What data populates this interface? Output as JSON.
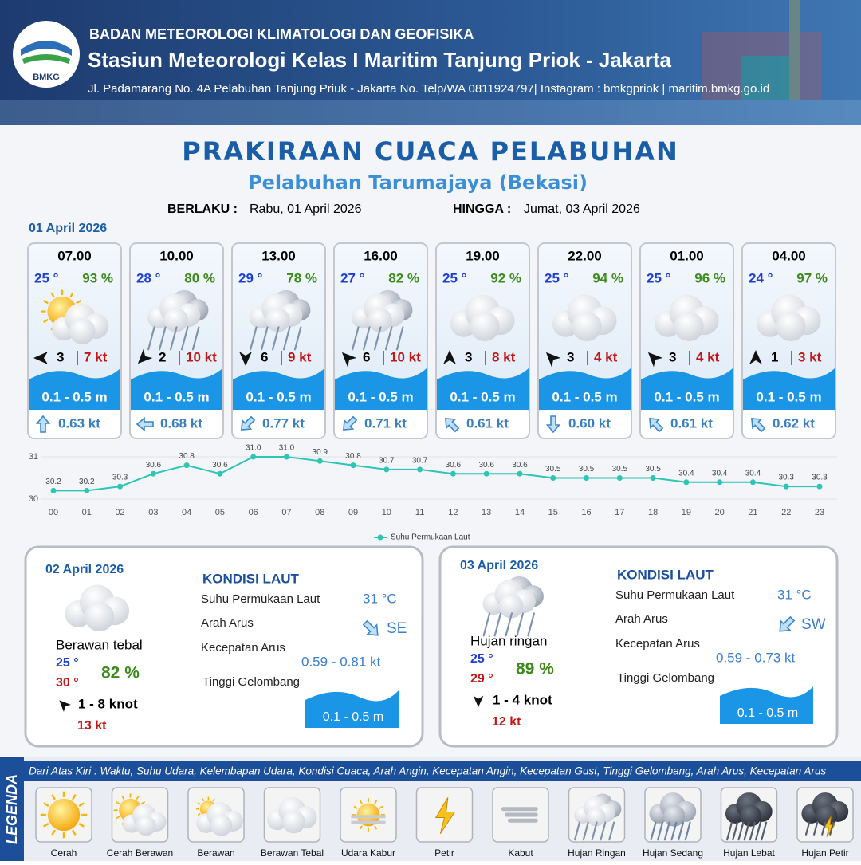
{
  "header": {
    "logo_text": "BMKG",
    "org": "BADAN METEOROLOGI KLIMATOLOGI DAN GEOFISIKA",
    "station": "Stasiun Meteorologi Kelas I Maritim Tanjung Priok - Jakarta",
    "address": "Jl. Padamarang No. 4A Pelabuhan Tanjung Priuk - Jakarta No. Telp/WA 0811924797| Instagram : bmkgpriok | maritim.bmkg.go.id"
  },
  "title": "PRAKIRAAN CUACA PELABUHAN",
  "subtitle": "Pelabuhan Tarumajaya (Bekasi)",
  "validity": {
    "from_label": "BERLAKU :",
    "from": "Rabu, 01 April 2026",
    "to_label": "HINGGA :",
    "to": "Jumat, 03 April 2026"
  },
  "day1": {
    "date": "01 April 2026",
    "forecasts": [
      {
        "time": "07.00",
        "temp": "25 °",
        "humidity": "93 %",
        "icon": 1,
        "wind_arrow": 270,
        "wind": "3",
        "gust": "7 kt",
        "wave": "0.1 - 0.5 m",
        "current_arrow": 0,
        "current": "0.63 kt"
      },
      {
        "time": "10.00",
        "temp": "28 °",
        "humidity": "80 %",
        "icon": 7,
        "wind_arrow": 225,
        "wind": "2",
        "gust": "10 kt",
        "wave": "0.1 - 0.5 m",
        "current_arrow": 270,
        "current": "0.68 kt"
      },
      {
        "time": "13.00",
        "temp": "29 °",
        "humidity": "78 %",
        "icon": 7,
        "wind_arrow": 180,
        "wind": "6",
        "gust": "9 kt",
        "wave": "0.1 - 0.5 m",
        "current_arrow": 225,
        "current": "0.77 kt"
      },
      {
        "time": "16.00",
        "temp": "27 °",
        "humidity": "82 %",
        "icon": 7,
        "wind_arrow": 315,
        "wind": "6",
        "gust": "10 kt",
        "wave": "0.1 - 0.5 m",
        "current_arrow": 225,
        "current": "0.71 kt"
      },
      {
        "time": "19.00",
        "temp": "25 °",
        "humidity": "92 %",
        "icon": 3,
        "wind_arrow": 0,
        "wind": "3",
        "gust": "8 kt",
        "wave": "0.1 - 0.5 m",
        "current_arrow": 315,
        "current": "0.61 kt"
      },
      {
        "time": "22.00",
        "temp": "25 °",
        "humidity": "94 %",
        "icon": 3,
        "wind_arrow": 315,
        "wind": "3",
        "gust": "4 kt",
        "wave": "0.1 - 0.5 m",
        "current_arrow": 180,
        "current": "0.60 kt"
      },
      {
        "time": "01.00",
        "temp": "25 °",
        "humidity": "96 %",
        "icon": 3,
        "wind_arrow": 315,
        "wind": "3",
        "gust": "4 kt",
        "wave": "0.1 - 0.5 m",
        "current_arrow": 315,
        "current": "0.61 kt"
      },
      {
        "time": "04.00",
        "temp": "24 °",
        "humidity": "97 %",
        "icon": 3,
        "wind_arrow": 0,
        "wind": "1",
        "gust": "3 kt",
        "wave": "0.1 - 0.5 m",
        "current_arrow": 315,
        "current": "0.62 kt"
      }
    ]
  },
  "chart_data": {
    "type": "line",
    "categories": [
      "00",
      "01",
      "02",
      "03",
      "04",
      "05",
      "06",
      "07",
      "08",
      "09",
      "10",
      "11",
      "12",
      "13",
      "14",
      "15",
      "16",
      "17",
      "18",
      "19",
      "20",
      "21",
      "22",
      "23"
    ],
    "series": [
      {
        "name": "Suhu Permukaan Laut",
        "color": "#2ec4b6",
        "values": [
          30.2,
          30.2,
          30.3,
          30.6,
          30.8,
          30.6,
          31.0,
          31.0,
          30.9,
          30.8,
          30.7,
          30.7,
          30.6,
          30.6,
          30.6,
          30.5,
          30.5,
          30.5,
          30.5,
          30.4,
          30.4,
          30.4,
          30.3,
          30.3
        ],
        "value_labels": [
          "30.2",
          "30.2",
          "30.3",
          "30.6",
          "30.8",
          "30.6",
          "31.0",
          "31.0",
          "30.9",
          "30.8",
          "30.7",
          "30.7",
          "30.6",
          "30.6",
          "30.6",
          "30.5",
          "30.5",
          "30.5",
          "30.5",
          "30.4",
          "30.4",
          "30.4",
          "30.3",
          "30.3"
        ]
      }
    ],
    "ylim": [
      30,
      31.15
    ],
    "yticks": [
      30,
      31
    ],
    "grid": true
  },
  "days": [
    {
      "date": "02 April 2026",
      "condition": "Berawan tebal",
      "icon": 3,
      "temp_min": "25 °",
      "temp_max": "30 °",
      "humidity": "82 %",
      "wind_arrow": 315,
      "wind": "1 - 8 knot",
      "gust": "13 kt",
      "sea": {
        "title": "KONDISI LAUT",
        "sst_label": "Suhu Permukaan Laut",
        "sst": "31 °C",
        "dir_label": "Arah Arus",
        "dir": "SE",
        "current_arrow": 135,
        "speed_label": "Kecepatan Arus",
        "speed": "0.59  - 0.81 kt",
        "wave_label": "Tinggi Gelombang",
        "wave": "0.1 - 0.5 m"
      }
    },
    {
      "date": "03 April 2026",
      "condition": "Hujan ringan",
      "icon": 7,
      "temp_min": "25 °",
      "temp_max": "29 °",
      "humidity": "89 %",
      "wind_arrow": 180,
      "wind": "1 - 4 knot",
      "gust": "12 kt",
      "sea": {
        "title": "KONDISI LAUT",
        "sst_label": "Suhu Permukaan Laut",
        "sst": "31 °C",
        "dir_label": "Arah Arus",
        "dir": "SW",
        "current_arrow": 225,
        "speed_label": "Kecepatan Arus",
        "speed": "0.59  - 0.73 kt",
        "wave_label": "Tinggi Gelombang",
        "wave": "0.1 - 0.5 m"
      }
    }
  ],
  "legend": {
    "title": "LEGENDA",
    "description": "Dari Atas Kiri : Waktu, Suhu Udara, Kelembapan Udara, Kondisi Cuaca, Arah Angin, Kecepatan Angin, Kecepatan Gust, Tinggi Gelombang, Arah Arus, Kecepatan Arus",
    "items": [
      "Cerah",
      "Cerah Berawan",
      "Berawan",
      "Berawan Tebal",
      "Udara Kabur",
      "Petir",
      "Kabut",
      "Hujan Ringan",
      "Hujan Sedang",
      "Hujan Lebat",
      "Hujan Petir"
    ]
  }
}
